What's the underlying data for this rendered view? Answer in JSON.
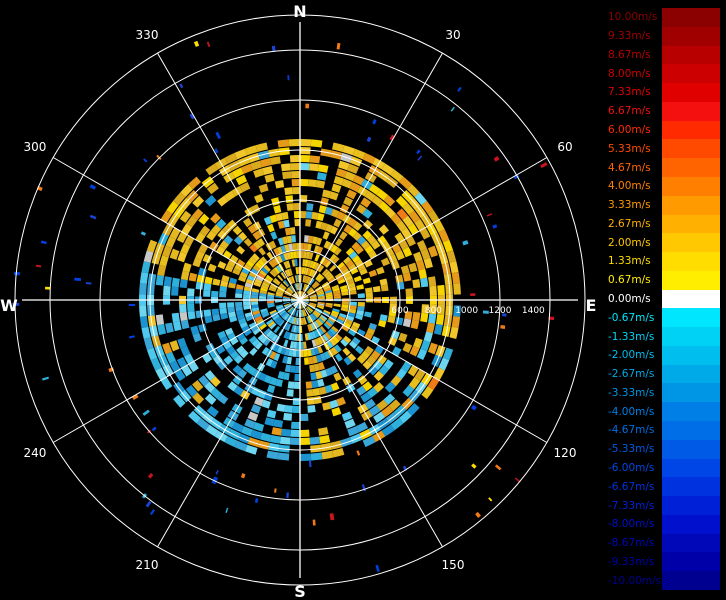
{
  "compass": {
    "north": "N",
    "south": "S",
    "east": "E",
    "west": "W"
  },
  "azimuth_labels": [
    "30",
    "60",
    "120",
    "150",
    "210",
    "240",
    "300",
    "330"
  ],
  "azimuth_degrees": [
    30,
    60,
    120,
    150,
    210,
    240,
    300,
    330
  ],
  "range_labels": [
    "600",
    "800",
    "1000",
    "1200",
    "1400"
  ],
  "range_max": 1500,
  "range_rings": [
    300,
    600,
    900,
    1200,
    1500
  ],
  "legend": {
    "entries": [
      {
        "label": "10.00m/s",
        "color": "#8b0000"
      },
      {
        "label": "9.33m/s",
        "color": "#a00000"
      },
      {
        "label": "8.67m/s",
        "color": "#b80000"
      },
      {
        "label": "8.00m/s",
        "color": "#cc0000"
      },
      {
        "label": "7.33m/s",
        "color": "#e00000"
      },
      {
        "label": "6.67m/s",
        "color": "#f51010"
      },
      {
        "label": "6.00m/s",
        "color": "#ff2a00"
      },
      {
        "label": "5.33m/s",
        "color": "#ff4a00"
      },
      {
        "label": "4.67m/s",
        "color": "#ff6400"
      },
      {
        "label": "4.00m/s",
        "color": "#ff7f00"
      },
      {
        "label": "3.33m/s",
        "color": "#ff9a00"
      },
      {
        "label": "2.67m/s",
        "color": "#ffb000"
      },
      {
        "label": "2.00m/s",
        "color": "#ffc800"
      },
      {
        "label": "1.33m/s",
        "color": "#ffdd00"
      },
      {
        "label": "0.67m/s",
        "color": "#ffee00"
      },
      {
        "label": "0.00m/s",
        "color": "#ffffff"
      },
      {
        "label": "-0.67m/s",
        "color": "#00e6ff"
      },
      {
        "label": "-1.33m/s",
        "color": "#00d2f5"
      },
      {
        "label": "-2.00m/s",
        "color": "#00bfee"
      },
      {
        "label": "-2.67m/s",
        "color": "#00aae8"
      },
      {
        "label": "-3.33m/s",
        "color": "#0096e6"
      },
      {
        "label": "-4.00m/s",
        "color": "#0080e6"
      },
      {
        "label": "-4.67m/s",
        "color": "#006ee6"
      },
      {
        "label": "-5.33m/s",
        "color": "#005ae6"
      },
      {
        "label": "-6.00m/s",
        "color": "#0046e6"
      },
      {
        "label": "-6.67m/s",
        "color": "#0032e0"
      },
      {
        "label": "-7.33m/s",
        "color": "#0020d8"
      },
      {
        "label": "-8.00m/s",
        "color": "#0010cc"
      },
      {
        "label": "-8.67m/s",
        "color": "#0008b8"
      },
      {
        "label": "-9.33m/s",
        "color": "#0000a8"
      },
      {
        "label": "-10.00m/s",
        "color": "#000090"
      }
    ]
  },
  "field_palette": {
    "warm": [
      "#e3b820",
      "#e8c01e",
      "#d9a91e",
      "#f0c62a",
      "#f6d400",
      "#e69a1a"
    ],
    "cool": [
      "#2fb0da",
      "#4ec8ec",
      "#3aa6d8",
      "#6fd6f0",
      "#1c93cf"
    ],
    "accent_red": "#c8141e",
    "accent_blue": "#1a44d6",
    "accent_orange": "#f07a18",
    "grey": "#c8c8c8"
  }
}
